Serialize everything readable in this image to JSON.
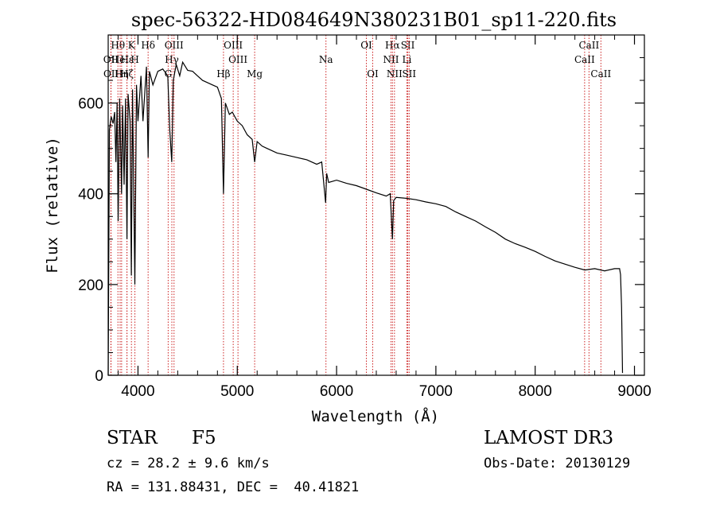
{
  "chart_data": {
    "type": "line",
    "title": "spec-56322-HD084649N380231B01_sp11-220.fits",
    "xlabel": "Wavelength (Å)",
    "ylabel": "Flux (relative)",
    "xlim": [
      3700,
      9100
    ],
    "ylim": [
      0,
      750
    ],
    "xticks": [
      4000,
      5000,
      6000,
      7000,
      8000,
      9000
    ],
    "yticks": [
      0,
      200,
      400,
      600
    ],
    "series": [
      {
        "name": "flux",
        "x": [
          3700,
          3712,
          3730,
          3750,
          3765,
          3778,
          3790,
          3800,
          3815,
          3835,
          3845,
          3860,
          3875,
          3889,
          3900,
          3920,
          3933,
          3945,
          3968,
          3985,
          4000,
          4030,
          4050,
          4085,
          4102,
          4115,
          4150,
          4200,
          4250,
          4300,
          4320,
          4340,
          4355,
          4385,
          4420,
          4450,
          4500,
          4550,
          4600,
          4650,
          4700,
          4750,
          4800,
          4840,
          4861,
          4880,
          4920,
          4950,
          5000,
          5050,
          5100,
          5150,
          5175,
          5200,
          5250,
          5300,
          5400,
          5500,
          5600,
          5700,
          5800,
          5850,
          5890,
          5900,
          5920,
          6000,
          6100,
          6200,
          6300,
          6400,
          6500,
          6540,
          6563,
          6575,
          6600,
          6700,
          6800,
          6900,
          7000,
          7100,
          7200,
          7300,
          7400,
          7500,
          7600,
          7700,
          7800,
          7900,
          8000,
          8100,
          8200,
          8300,
          8400,
          8500,
          8600,
          8700,
          8800,
          8850,
          8860,
          8870,
          8880
        ],
        "y": [
          0,
          540,
          570,
          555,
          580,
          470,
          600,
          340,
          610,
          400,
          595,
          420,
          610,
          300,
          620,
          560,
          220,
          630,
          200,
          640,
          560,
          660,
          560,
          680,
          480,
          670,
          640,
          670,
          675,
          660,
          540,
          470,
          650,
          685,
          660,
          690,
          672,
          670,
          660,
          650,
          645,
          640,
          635,
          610,
          400,
          600,
          575,
          580,
          560,
          550,
          530,
          520,
          470,
          515,
          505,
          500,
          490,
          485,
          480,
          475,
          465,
          470,
          380,
          445,
          425,
          430,
          423,
          418,
          410,
          402,
          395,
          400,
          300,
          385,
          392,
          390,
          387,
          382,
          378,
          372,
          360,
          350,
          340,
          327,
          315,
          300,
          290,
          282,
          273,
          262,
          252,
          245,
          238,
          232,
          235,
          230,
          235,
          235,
          222,
          150,
          5
        ]
      }
    ],
    "line_markers": [
      {
        "label": "Hθ",
        "x": 3798,
        "row": 1
      },
      {
        "label": "OII",
        "x": 3727,
        "row": 2
      },
      {
        "label": "OII",
        "x": 3729,
        "row": 3
      },
      {
        "label": "HeI",
        "x": 3820,
        "row": 2
      },
      {
        "label": "Hη",
        "x": 3835,
        "row": 3
      },
      {
        "label": "K",
        "x": 3934,
        "row": 1
      },
      {
        "label": "Hε",
        "x": 3889,
        "row": 2
      },
      {
        "label": "Hζ",
        "x": 3889,
        "row": 3
      },
      {
        "label": "H",
        "x": 3969,
        "row": 2
      },
      {
        "label": "Hδ",
        "x": 4102,
        "row": 1
      },
      {
        "label": "OIII",
        "x": 4363,
        "row": 1
      },
      {
        "label": "Hγ",
        "x": 4341,
        "row": 2
      },
      {
        "label": "G",
        "x": 4304,
        "row": 3
      },
      {
        "label": "OIII",
        "x": 4959,
        "row": 1
      },
      {
        "label": "OIII",
        "x": 5007,
        "row": 2
      },
      {
        "label": "Hβ",
        "x": 4861,
        "row": 3
      },
      {
        "label": "Mg",
        "x": 5175,
        "row": 3
      },
      {
        "label": "Na",
        "x": 5893,
        "row": 2
      },
      {
        "label": "OI",
        "x": 6300,
        "row": 1
      },
      {
        "label": "OI",
        "x": 6364,
        "row": 3
      },
      {
        "label": "Hα",
        "x": 6563,
        "row": 1
      },
      {
        "label": "NII",
        "x": 6548,
        "row": 2
      },
      {
        "label": "NII",
        "x": 6583,
        "row": 3
      },
      {
        "label": "SII",
        "x": 6717,
        "row": 1
      },
      {
        "label": "Li",
        "x": 6708,
        "row": 2
      },
      {
        "label": "SII",
        "x": 6731,
        "row": 3
      },
      {
        "label": "CaII",
        "x": 8542,
        "row": 1
      },
      {
        "label": "CaII",
        "x": 8498,
        "row": 2
      },
      {
        "label": "CaII",
        "x": 8662,
        "row": 3
      }
    ],
    "marker_color": "#cc2222",
    "line_color": "#000000"
  },
  "info": {
    "object_type": "STAR",
    "subclass": "F5",
    "survey": "LAMOST DR3",
    "redshift": "cz = 28.2 ± 9.6 km/s",
    "obs_date": "Obs-Date: 20130129",
    "coords": "RA = 131.88431, DEC =  40.41821"
  }
}
